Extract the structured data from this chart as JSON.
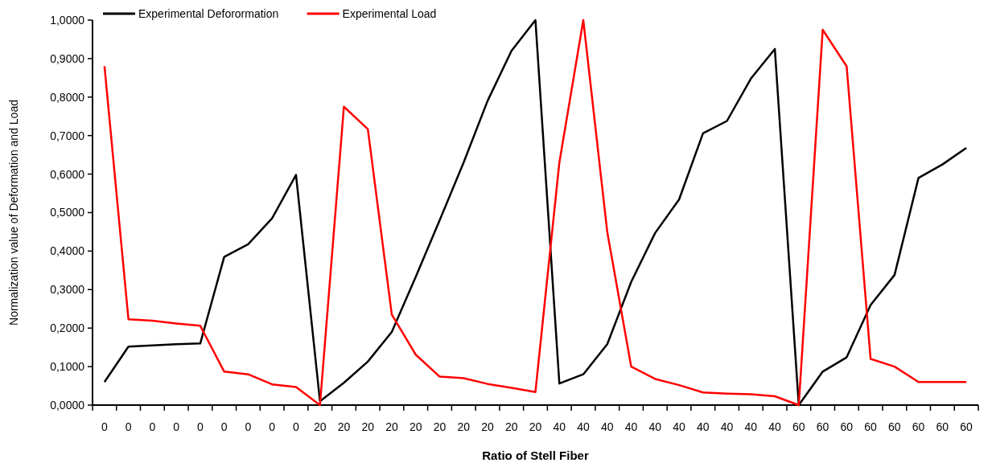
{
  "chart_data": {
    "type": "line",
    "xlabel": "Ratio of Stell Fiber",
    "ylabel": "Normalization value of Deformation and Load",
    "categories": [
      "0",
      "0",
      "0",
      "0",
      "0",
      "0",
      "0",
      "0",
      "0",
      "20",
      "20",
      "20",
      "20",
      "20",
      "20",
      "20",
      "20",
      "20",
      "20",
      "40",
      "40",
      "40",
      "40",
      "40",
      "40",
      "40",
      "40",
      "40",
      "40",
      "60",
      "60",
      "60",
      "60",
      "60",
      "60",
      "60",
      "60"
    ],
    "series": [
      {
        "name": "Experimental Deforormation",
        "color": "#000000",
        "values": [
          0.06,
          0.152,
          0.155,
          0.158,
          0.16,
          0.385,
          0.418,
          0.485,
          0.598,
          0.01,
          0.058,
          0.113,
          0.19,
          0.333,
          0.48,
          0.63,
          0.79,
          0.92,
          1.0,
          0.056,
          0.08,
          0.158,
          0.32,
          0.447,
          0.534,
          0.706,
          0.738,
          0.848,
          0.925,
          0.0,
          0.087,
          0.124,
          0.26,
          0.338,
          0.59,
          0.625,
          0.668
        ]
      },
      {
        "name": "Experimental Load",
        "color": "#ff0000",
        "values": [
          0.88,
          0.223,
          0.219,
          0.212,
          0.206,
          0.087,
          0.08,
          0.054,
          0.047,
          0.0,
          0.775,
          0.717,
          0.235,
          0.131,
          0.074,
          0.07,
          0.055,
          0.045,
          0.034,
          0.63,
          1.0,
          0.45,
          0.1,
          0.068,
          0.052,
          0.033,
          0.03,
          0.028,
          0.023,
          0.0,
          0.975,
          0.88,
          0.12,
          0.1,
          0.06,
          0.06,
          0.06
        ]
      }
    ],
    "ylim": [
      0,
      1
    ],
    "yticks": [
      {
        "value": 0,
        "label": "0,0000"
      },
      {
        "value": 0.1,
        "label": "0,1000"
      },
      {
        "value": 0.2,
        "label": "0,2000"
      },
      {
        "value": 0.3,
        "label": "0,3000"
      },
      {
        "value": 0.4,
        "label": "0,4000"
      },
      {
        "value": 0.5,
        "label": "0,5000"
      },
      {
        "value": 0.6,
        "label": "0,6000"
      },
      {
        "value": 0.7,
        "label": "0,7000"
      },
      {
        "value": 0.8,
        "label": "0,8000"
      },
      {
        "value": 0.9,
        "label": "0,9000"
      },
      {
        "value": 1,
        "label": "1,0000"
      }
    ],
    "grid": false,
    "legend": "top",
    "marker": "none",
    "line_style": "solid"
  }
}
